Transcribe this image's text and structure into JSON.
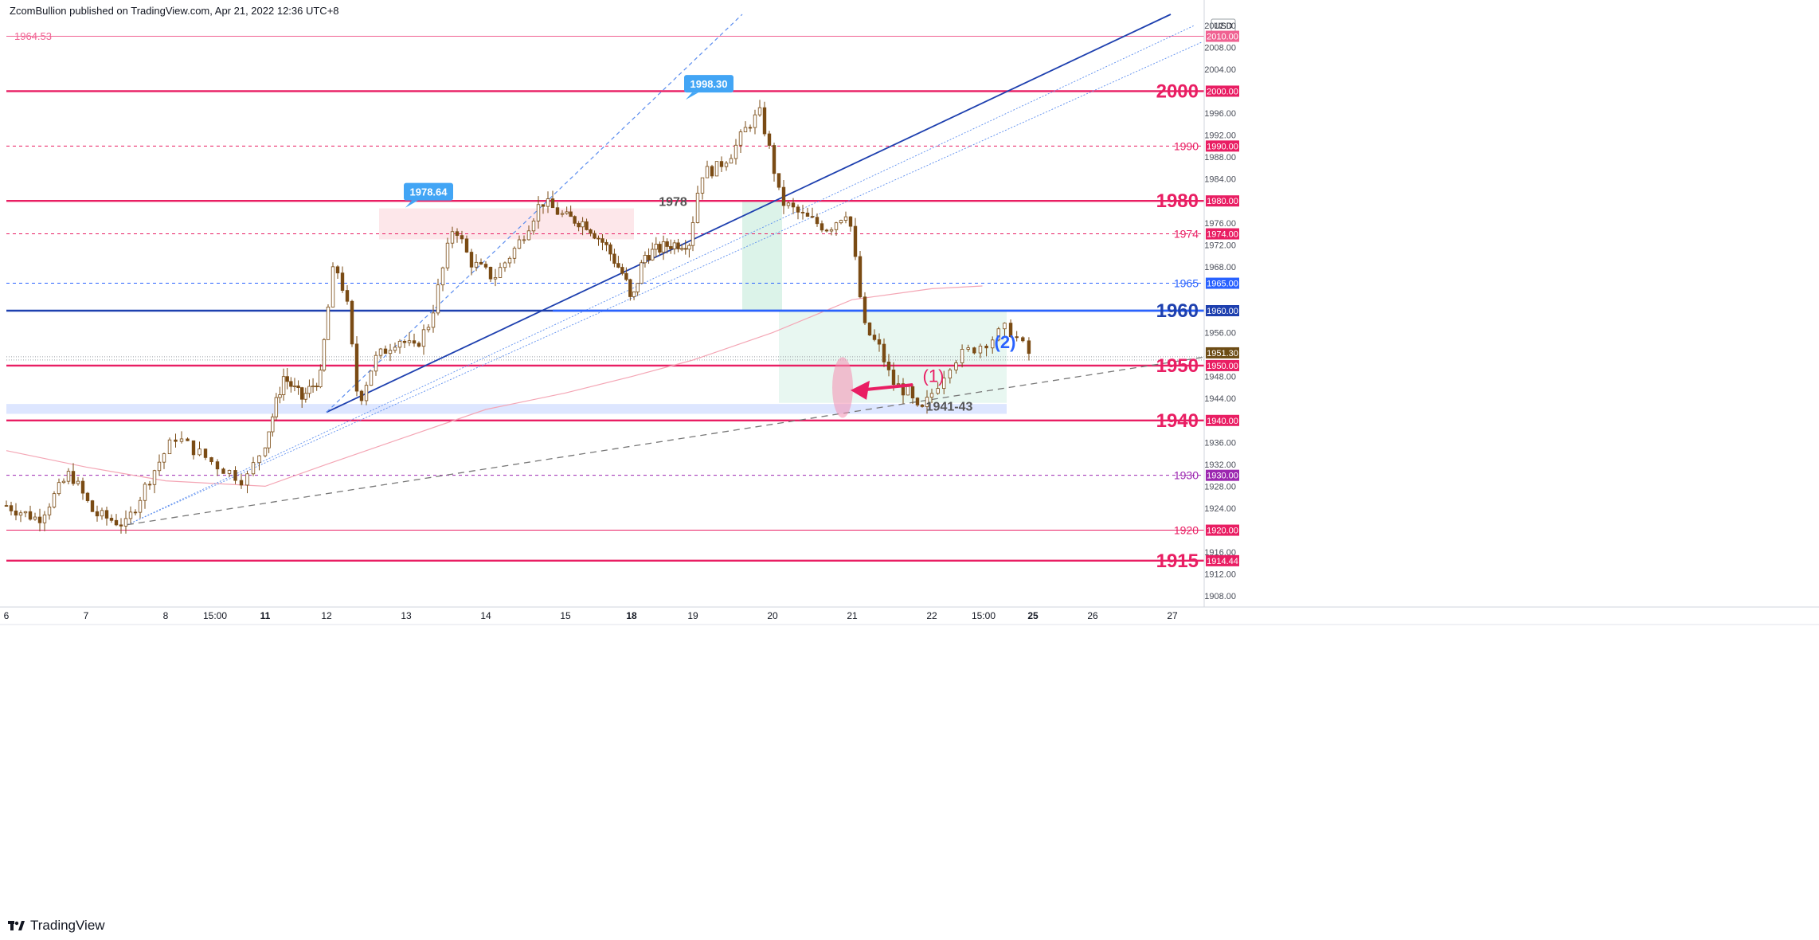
{
  "header": {
    "author": "ZcomBullion",
    "published_on": "published on TradingView.com,",
    "date": "Apr 21, 2022 12:36 UTC+8"
  },
  "sym_stub": "1964.53",
  "brand": "TradingView",
  "colors": {
    "level_major": "#e91e63",
    "level_minor": "#f06292",
    "blue_line": "#1e40af",
    "dotted_blue": "#5b8def",
    "candle": "#7a4b14",
    "ma": "#f4a6b5",
    "green_zone": "#cdeee0",
    "pink_zone": "#fbd3d8",
    "blue_zone": "#d9e3ff",
    "axis_text": "#4a4e59"
  },
  "chart_data": {
    "type": "candlestick",
    "currency": "USD",
    "ylim": [
      1906,
      2014
    ],
    "price_axis_ticks": [
      "2012.00",
      "2008.00",
      "2004.00",
      "1996.00",
      "1992.00",
      "1988.00",
      "1984.00",
      "1976.00",
      "1972.00",
      "1968.00",
      "1956.00",
      "1948.00",
      "1944.00",
      "1936.00",
      "1932.00",
      "1928.00",
      "1924.00",
      "1916.00",
      "1912.00",
      "1908.00"
    ],
    "time_axis_ticks": [
      "6",
      "7",
      "8",
      "15:00",
      "11",
      "12",
      "13",
      "14",
      "15",
      "18",
      "19",
      "20",
      "21",
      "22",
      "15:00",
      "25",
      "26",
      "27"
    ],
    "bold_time_ticks": [
      "11",
      "18",
      "25"
    ],
    "levels": [
      {
        "price": 2010.0,
        "label": "",
        "tag": "2010.00",
        "style": "solid",
        "weight": "thin",
        "color": "#f06292"
      },
      {
        "price": 2000.0,
        "label": "2000",
        "tag": "2000.00",
        "style": "solid",
        "weight": "bold",
        "color": "#e91e63"
      },
      {
        "price": 1990.0,
        "label": "1990",
        "tag": "1990.00",
        "style": "dashed",
        "weight": "thin",
        "color": "#e91e63"
      },
      {
        "price": 1980.0,
        "label": "1980",
        "tag": "1980.00",
        "style": "solid",
        "weight": "bold",
        "color": "#e91e63"
      },
      {
        "price": 1974.0,
        "label": "1974",
        "tag": "1974.00",
        "style": "dashed",
        "weight": "thin",
        "color": "#e91e63"
      },
      {
        "price": 1965.0,
        "label": "1965",
        "tag": "1965.00",
        "style": "dashed",
        "weight": "thin",
        "color": "#2962ff"
      },
      {
        "price": 1960.0,
        "label": "1960",
        "tag": "1960.00",
        "style": "solid",
        "weight": "bold",
        "color": "#1e40af"
      },
      {
        "price": 1950.0,
        "label": "1950",
        "tag": "1950.00",
        "style": "solid",
        "weight": "bold",
        "color": "#e91e63"
      },
      {
        "price": 1940.0,
        "label": "1940",
        "tag": "1940.00",
        "style": "solid",
        "weight": "bold",
        "color": "#e91e63"
      },
      {
        "price": 1930.0,
        "label": "1930",
        "tag": "1930.00",
        "style": "dashed",
        "weight": "thin",
        "color": "#9c27b0"
      },
      {
        "price": 1920.0,
        "label": "1920",
        "tag": "1920.00",
        "style": "solid",
        "weight": "thin",
        "color": "#e91e63"
      },
      {
        "price": 1914.44,
        "label": "1915",
        "tag": "1914.44",
        "style": "solid",
        "weight": "bold",
        "color": "#e91e63"
      }
    ],
    "current_price": {
      "price": 1951.3,
      "tag": "1951.30"
    },
    "callouts": [
      {
        "text": "1998.30",
        "price": 1998.3
      },
      {
        "text": "1978.64",
        "price": 1978.64
      }
    ],
    "zone_labels": [
      {
        "text": "1978"
      },
      {
        "text": "1941-43"
      },
      {
        "text": "(1)"
      },
      {
        "text": "(2)"
      }
    ],
    "close_path": [
      {
        "t": 0,
        "p": 1924.5
      },
      {
        "t": 0.4,
        "p": 1922
      },
      {
        "t": 0.8,
        "p": 1930.5
      },
      {
        "t": 1.1,
        "p": 1923
      },
      {
        "t": 1.5,
        "p": 1921
      },
      {
        "t": 1.8,
        "p": 1929.5
      },
      {
        "t": 2.1,
        "p": 1937
      },
      {
        "t": 2.5,
        "p": 1932
      },
      {
        "t": 2.8,
        "p": 1929
      },
      {
        "t": 3.0,
        "p": 1936
      },
      {
        "t": 3.3,
        "p": 1948
      },
      {
        "t": 3.6,
        "p": 1944
      },
      {
        "t": 3.9,
        "p": 1948
      },
      {
        "t": 4.1,
        "p": 1969
      },
      {
        "t": 4.25,
        "p": 1962
      },
      {
        "t": 4.4,
        "p": 1943
      },
      {
        "t": 4.6,
        "p": 1951
      },
      {
        "t": 4.9,
        "p": 1955
      },
      {
        "t": 5.1,
        "p": 1953
      },
      {
        "t": 5.3,
        "p": 1958
      },
      {
        "t": 5.6,
        "p": 1976
      },
      {
        "t": 5.8,
        "p": 1969
      },
      {
        "t": 6.1,
        "p": 1966
      },
      {
        "t": 6.4,
        "p": 1972
      },
      {
        "t": 6.7,
        "p": 1980
      },
      {
        "t": 7.0,
        "p": 1977
      },
      {
        "t": 7.3,
        "p": 1976
      },
      {
        "t": 7.6,
        "p": 1972
      },
      {
        "t": 7.9,
        "p": 1966
      },
      {
        "t": 8.0,
        "p": 1961
      },
      {
        "t": 8.2,
        "p": 1970
      },
      {
        "t": 8.6,
        "p": 1972
      },
      {
        "t": 8.95,
        "p": 1972.5
      },
      {
        "t": 9.1,
        "p": 1985
      },
      {
        "t": 9.3,
        "p": 1986
      },
      {
        "t": 9.5,
        "p": 1989
      },
      {
        "t": 9.7,
        "p": 1994
      },
      {
        "t": 9.85,
        "p": 1996
      },
      {
        "t": 10.0,
        "p": 1987
      },
      {
        "t": 10.1,
        "p": 1980
      },
      {
        "t": 10.4,
        "p": 1977
      },
      {
        "t": 10.7,
        "p": 1975
      },
      {
        "t": 10.95,
        "p": 1978.5
      },
      {
        "t": 11.05,
        "p": 1968
      },
      {
        "t": 11.15,
        "p": 1957
      },
      {
        "t": 11.35,
        "p": 1953
      },
      {
        "t": 11.5,
        "p": 1947
      },
      {
        "t": 11.7,
        "p": 1945
      },
      {
        "t": 11.85,
        "p": 1941
      },
      {
        "t": 12.0,
        "p": 1945
      },
      {
        "t": 12.2,
        "p": 1951
      },
      {
        "t": 12.4,
        "p": 1953
      },
      {
        "t": 12.6,
        "p": 1955
      },
      {
        "t": 12.75,
        "p": 1957
      },
      {
        "t": 12.9,
        "p": 1953.5
      },
      {
        "t": 13.0,
        "p": 1951.3
      }
    ],
    "moving_average": [
      {
        "t": 0,
        "p": 1934.5
      },
      {
        "t": 1,
        "p": 1931.5
      },
      {
        "t": 2,
        "p": 1929
      },
      {
        "t": 3,
        "p": 1928
      },
      {
        "t": 4,
        "p": 1932
      },
      {
        "t": 5,
        "p": 1937
      },
      {
        "t": 6,
        "p": 1942
      },
      {
        "t": 7,
        "p": 1945
      },
      {
        "t": 8,
        "p": 1948
      },
      {
        "t": 9,
        "p": 1951
      },
      {
        "t": 10,
        "p": 1956
      },
      {
        "t": 11,
        "p": 1962
      },
      {
        "t": 12,
        "p": 1964
      },
      {
        "t": 12.5,
        "p": 1964.5
      }
    ]
  }
}
